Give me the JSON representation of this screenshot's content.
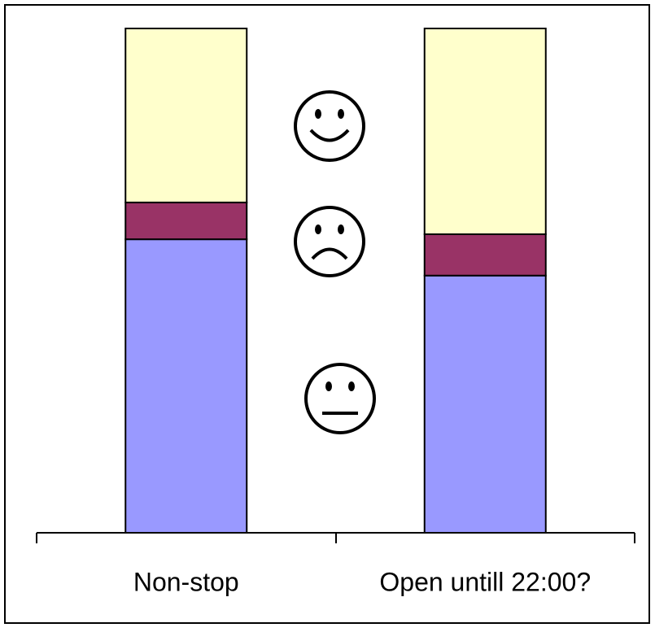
{
  "chart_data": {
    "type": "stacked-bar",
    "categories": [
      "Non-stop",
      "Open untill 22:00?"
    ],
    "series": [
      {
        "color": "#9999ff",
        "values": [
          58.2,
          51
        ]
      },
      {
        "color": "#993366",
        "values": [
          7.3,
          8.2
        ]
      },
      {
        "color": "#ffffcc",
        "values": [
          34.5,
          40.8
        ]
      }
    ],
    "ylim": [
      0,
      100
    ]
  }
}
